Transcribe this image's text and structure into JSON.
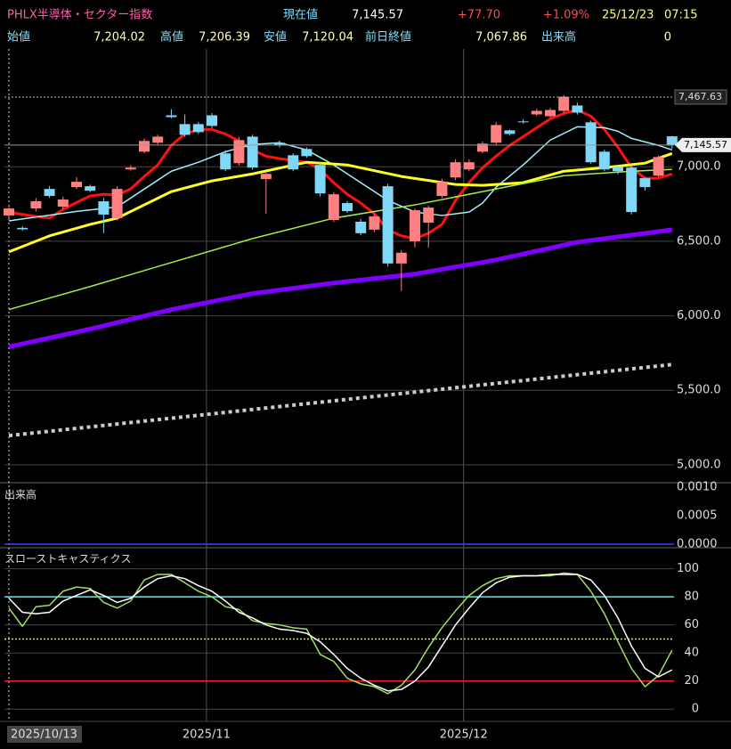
{
  "header": {
    "title": "PHLX半導体・セクター指数",
    "row1": [
      {
        "label": "現在値",
        "value": "7,145.57"
      },
      {
        "value": "+77.70"
      },
      {
        "value": "+1.09%"
      },
      {
        "value": "25/12/23"
      },
      {
        "value": "07:15"
      }
    ],
    "row2": [
      {
        "label": "始値",
        "value": "7,204.02"
      },
      {
        "label": "高値",
        "value": "7,206.39"
      },
      {
        "label": "安値",
        "value": "7,120.04"
      },
      {
        "label": "前日終値",
        "value": "7,067.86"
      },
      {
        "label": "出来高",
        "value": "0"
      }
    ]
  },
  "chart_data": [
    {
      "type": "candlestick",
      "up_color": "#ff8080",
      "down_color": "#80d8f8",
      "open": [
        6673,
        6590,
        6720,
        6851,
        6732,
        6863,
        6869,
        6768,
        6655,
        6982,
        7101,
        7161,
        7345,
        7286,
        7286,
        7345,
        7089,
        7024,
        7202,
        6917,
        7161,
        7077,
        7119,
        7012,
        6643,
        6756,
        6631,
        6578,
        6869,
        6351,
        6500,
        6625,
        6804,
        6928,
        6982,
        7101,
        7161,
        7244,
        7304,
        7351,
        7339,
        7375,
        7411,
        7298,
        7101,
        7000,
        6994,
        6923,
        6940,
        7204.02
      ],
      "high": [
        6730,
        6600,
        6790,
        6870,
        6800,
        6930,
        6880,
        6790,
        6870,
        7010,
        7190,
        7215,
        7387,
        7351,
        7300,
        7360,
        7110,
        7200,
        7215,
        6960,
        7175,
        7090,
        7130,
        7030,
        6830,
        6770,
        6650,
        6680,
        6885,
        6440,
        6720,
        6740,
        6920,
        7050,
        7050,
        7170,
        7300,
        7250,
        7320,
        7390,
        7395,
        7480,
        7430,
        7310,
        7115,
        7010,
        7010,
        6930,
        7075,
        7206.39
      ],
      "low": [
        6650,
        6570,
        6700,
        6790,
        6715,
        6850,
        6830,
        6554,
        6640,
        6975,
        7090,
        7150,
        7325,
        7200,
        7220,
        7260,
        6970,
        7010,
        6980,
        6685,
        7130,
        6970,
        7060,
        6800,
        6630,
        6690,
        6540,
        6560,
        6330,
        6167,
        6460,
        6458,
        6790,
        6910,
        6970,
        7090,
        7150,
        7210,
        7290,
        7340,
        7330,
        7360,
        7350,
        7020,
        6970,
        6950,
        6680,
        6840,
        6930,
        7120.04
      ],
      "close": [
        6720,
        6580,
        6768,
        6804,
        6780,
        6899,
        6839,
        6679,
        6851,
        6994,
        7173,
        7202,
        7333,
        7214,
        7232,
        7274,
        6982,
        7179,
        6994,
        6952,
        7143,
        6982,
        7071,
        6821,
        6815,
        6702,
        6554,
        6667,
        6351,
        6423,
        6708,
        6726,
        6899,
        7030,
        7030,
        7155,
        7280,
        7220,
        7298,
        7375,
        7381,
        7470,
        7363,
        7030,
        6982,
        6970,
        6696,
        6863,
        7065,
        7145.57
      ],
      "lines": [
        {
          "color": "#ff1010",
          "width": 3,
          "x": [
            0,
            1,
            2,
            3,
            4,
            5,
            6,
            7,
            8,
            9,
            10,
            11,
            12,
            13,
            14,
            15,
            16,
            17,
            18,
            19,
            20,
            21,
            22,
            23,
            24,
            25,
            26,
            27,
            28,
            29,
            30,
            31,
            32,
            33,
            34,
            35,
            36,
            37,
            38,
            39,
            40,
            41,
            42,
            43,
            44,
            45,
            46,
            47,
            48,
            49
          ],
          "values": [
            6696,
            6680,
            6667,
            6655,
            6714,
            6760,
            6804,
            6815,
            6810,
            6851,
            6935,
            7012,
            7143,
            7220,
            7250,
            7250,
            7220,
            7173,
            7113,
            7071,
            7054,
            7042,
            7030,
            6982,
            6893,
            6815,
            6756,
            6685,
            6577,
            6536,
            6518,
            6554,
            6613,
            6774,
            6893,
            6994,
            7071,
            7143,
            7202,
            7262,
            7321,
            7357,
            7381,
            7339,
            7250,
            7131,
            6994,
            6923,
            6923,
            6952
          ]
        },
        {
          "color": "#9ff0ff",
          "width": 1.5,
          "x": [
            0,
            5,
            8,
            10,
            12,
            14,
            16,
            18,
            20,
            22,
            24,
            26,
            28,
            30,
            32,
            34,
            35,
            36,
            38,
            40,
            42,
            44,
            45,
            46,
            48,
            49
          ],
          "values": [
            6637,
            6700,
            6730,
            6850,
            6970,
            7030,
            7101,
            7149,
            7161,
            7113,
            7012,
            6893,
            6774,
            6696,
            6673,
            6696,
            6756,
            6863,
            7012,
            7179,
            7268,
            7262,
            7238,
            7190,
            7143,
            7113
          ]
        },
        {
          "color": "#ffff20",
          "width": 3,
          "x": [
            0,
            3,
            6,
            8,
            12,
            15,
            18,
            22,
            25,
            29,
            33,
            35,
            38,
            41,
            44,
            47,
            49
          ],
          "values": [
            6429,
            6536,
            6613,
            6655,
            6833,
            6905,
            6952,
            7030,
            7012,
            6935,
            6881,
            6875,
            6893,
            6970,
            6994,
            7024,
            7089
          ]
        },
        {
          "color": "#a0f040",
          "width": 1.5,
          "x": [
            0,
            6,
            12,
            18,
            24,
            30,
            36,
            41,
            46,
            49
          ],
          "values": [
            6042,
            6196,
            6357,
            6518,
            6655,
            6744,
            6851,
            6940,
            6970,
            6982
          ]
        },
        {
          "color": "#8000ff",
          "width": 5,
          "x": [
            0,
            6,
            12,
            18,
            24,
            30,
            36,
            42,
            49
          ],
          "values": [
            5792,
            5911,
            6042,
            6149,
            6220,
            6280,
            6375,
            6494,
            6577
          ]
        },
        {
          "color": "#cccccc",
          "width": 4,
          "style": "dotted",
          "x": [
            0,
            49
          ],
          "values": [
            5196,
            5673
          ]
        }
      ],
      "price_lines": [
        {
          "value": 7467.63,
          "label": "7,467.63",
          "style": "dotted"
        },
        {
          "value": 7145.57,
          "label": "7,145.57",
          "style": "solid"
        }
      ],
      "ylim": [
        4880,
        7790
      ],
      "yticks": [
        {
          "value": 5000,
          "label": "5,000.0"
        },
        {
          "value": 5500,
          "label": "5,500.0"
        },
        {
          "value": 6000,
          "label": "6,000.0"
        },
        {
          "value": 6500,
          "label": "6,500.0"
        },
        {
          "value": 7000,
          "label": "7,000.0"
        }
      ]
    },
    {
      "type": "bar",
      "title": "出来高",
      "baseline_color": "#4040ff",
      "ylim": [
        0,
        0.001
      ],
      "yticks": [
        {
          "value": 0.001,
          "label": "0.0010"
        },
        {
          "value": 0.0005,
          "label": "0.0005"
        },
        {
          "value": 0,
          "label": "0.0000"
        }
      ]
    },
    {
      "type": "line",
      "title": "スローストキャスティクス",
      "ylim": [
        -10,
        115
      ],
      "yticks": [
        0,
        20,
        40,
        60,
        80,
        100
      ],
      "levels": [
        {
          "value": 80,
          "color": "#70e0e0"
        },
        {
          "value": 50,
          "color": "#e0e070",
          "style": "dotted"
        },
        {
          "value": 20,
          "color": "#ff2020"
        }
      ],
      "series": [
        {
          "color": "#a0e060",
          "values": [
            72,
            59,
            73,
            74,
            84,
            87,
            86,
            76,
            72,
            77,
            92,
            96,
            96,
            90,
            84,
            80,
            73,
            71,
            63,
            61,
            60,
            58,
            57,
            39,
            34,
            22,
            18,
            16,
            11,
            17,
            28,
            44,
            58,
            70,
            81,
            88,
            93,
            95,
            95,
            95,
            95,
            97,
            96,
            84,
            68,
            48,
            29,
            16,
            24,
            42
          ]
        },
        {
          "color": "#ffffff",
          "values": [
            79,
            69,
            68,
            69,
            77,
            81,
            85,
            81,
            76,
            79,
            87,
            93,
            95,
            93,
            88,
            84,
            77,
            69,
            65,
            60,
            57,
            56,
            54,
            48,
            39,
            29,
            22,
            17,
            13,
            14,
            20,
            30,
            45,
            60,
            72,
            83,
            90,
            94,
            95,
            95,
            96,
            96,
            96,
            92,
            81,
            65,
            45,
            29,
            23,
            28
          ]
        }
      ],
      "x_labels": [
        {
          "index": 0,
          "label": "2025/10/13"
        },
        {
          "index": 14.6,
          "label": "2025/11"
        },
        {
          "index": 33.6,
          "label": "2025/12"
        }
      ]
    }
  ]
}
